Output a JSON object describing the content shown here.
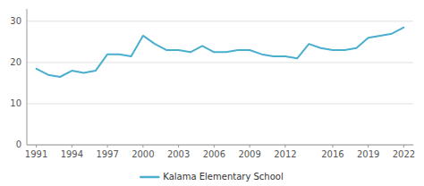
{
  "chart_data": {
    "type": "line",
    "x": [
      1991,
      1992,
      1993,
      1994,
      1995,
      1996,
      1997,
      1998,
      1999,
      2000,
      2001,
      2002,
      2003,
      2004,
      2005,
      2006,
      2007,
      2008,
      2009,
      2010,
      2011,
      2012,
      2013,
      2014,
      2015,
      2016,
      2017,
      2018,
      2019,
      2020,
      2021,
      2022
    ],
    "series": [
      {
        "name": "Kalama Elementary School",
        "color": "#4aafcf",
        "values": [
          18.5,
          17.0,
          16.5,
          18.0,
          17.5,
          18.0,
          22.0,
          22.0,
          21.5,
          26.5,
          24.5,
          23.0,
          23.0,
          22.5,
          24.0,
          22.5,
          22.5,
          23.0,
          23.0,
          22.0,
          21.5,
          21.5,
          21.0,
          24.5,
          23.5,
          23.0,
          23.0,
          23.5,
          26.0,
          26.5,
          27.0,
          28.5
        ]
      }
    ],
    "xlim": [
      1990.2,
      2022.8
    ],
    "ylim": [
      0,
      33
    ],
    "xticks": [
      1991,
      1994,
      1997,
      2000,
      2003,
      2006,
      2009,
      2012,
      2016,
      2019,
      2022
    ],
    "yticks": [
      0,
      10,
      20,
      30
    ],
    "grid": true,
    "legend": "bottom"
  }
}
